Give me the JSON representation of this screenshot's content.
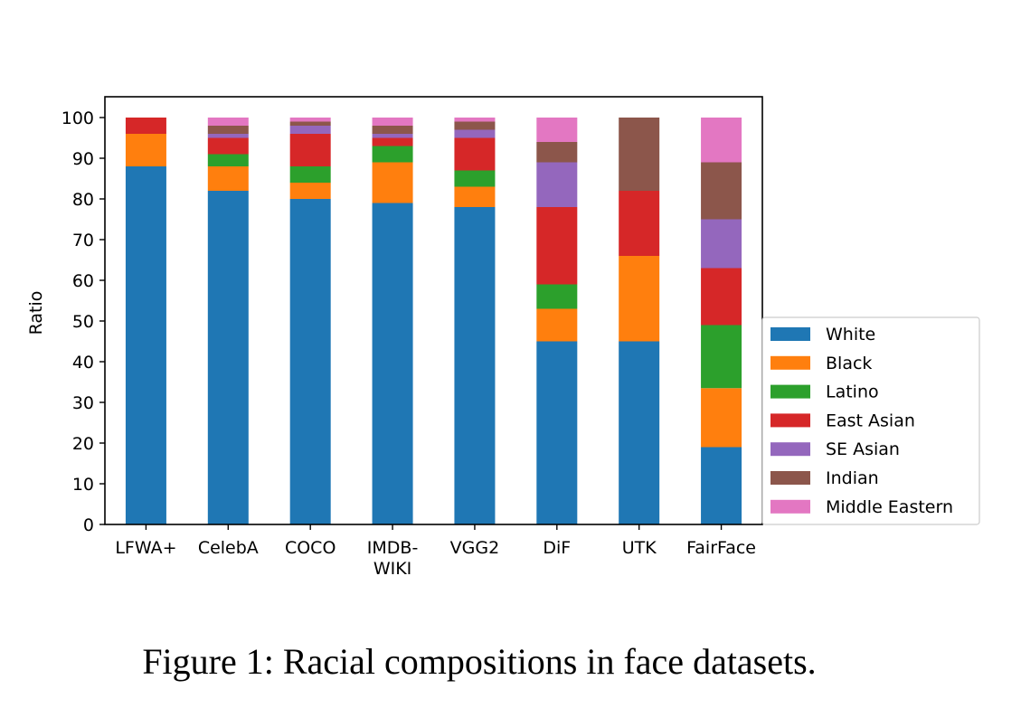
{
  "caption": "Figure 1: Racial compositions in face datasets.",
  "chart_data": {
    "type": "bar",
    "stacked": true,
    "categories": [
      "LFWA+",
      "CelebA",
      "COCO",
      "IMDB-\nWIKI",
      "VGG2",
      "DiF",
      "UTK",
      "FairFace"
    ],
    "ylabel": "Ratio",
    "xlabel": "",
    "ylim": [
      0,
      100
    ],
    "yticks": [
      0,
      10,
      20,
      30,
      40,
      50,
      60,
      70,
      80,
      90,
      100
    ],
    "legend_position": "lower-right outside",
    "series": [
      {
        "name": "White",
        "color": "#1f77b4",
        "values": [
          88,
          82,
          80,
          79,
          78,
          45,
          45,
          19
        ]
      },
      {
        "name": "Black",
        "color": "#ff7f0e",
        "values": [
          8,
          6,
          4,
          10,
          5,
          8,
          21,
          14.5
        ]
      },
      {
        "name": "Latino",
        "color": "#2ca02c",
        "values": [
          0,
          3,
          4,
          4,
          4,
          6,
          0,
          15.5
        ]
      },
      {
        "name": "East Asian",
        "color": "#d62728",
        "values": [
          4,
          4,
          8,
          2,
          8,
          19,
          16,
          14
        ]
      },
      {
        "name": "SE Asian",
        "color": "#9467bd",
        "values": [
          0,
          1,
          2,
          1,
          2,
          11,
          0,
          12
        ]
      },
      {
        "name": "Indian",
        "color": "#8c564b",
        "values": [
          0,
          2,
          1,
          2,
          2,
          5,
          18,
          14
        ]
      },
      {
        "name": "Middle Eastern",
        "color": "#e377c2",
        "values": [
          0,
          2,
          1,
          2,
          1,
          6,
          0,
          11
        ]
      }
    ]
  }
}
